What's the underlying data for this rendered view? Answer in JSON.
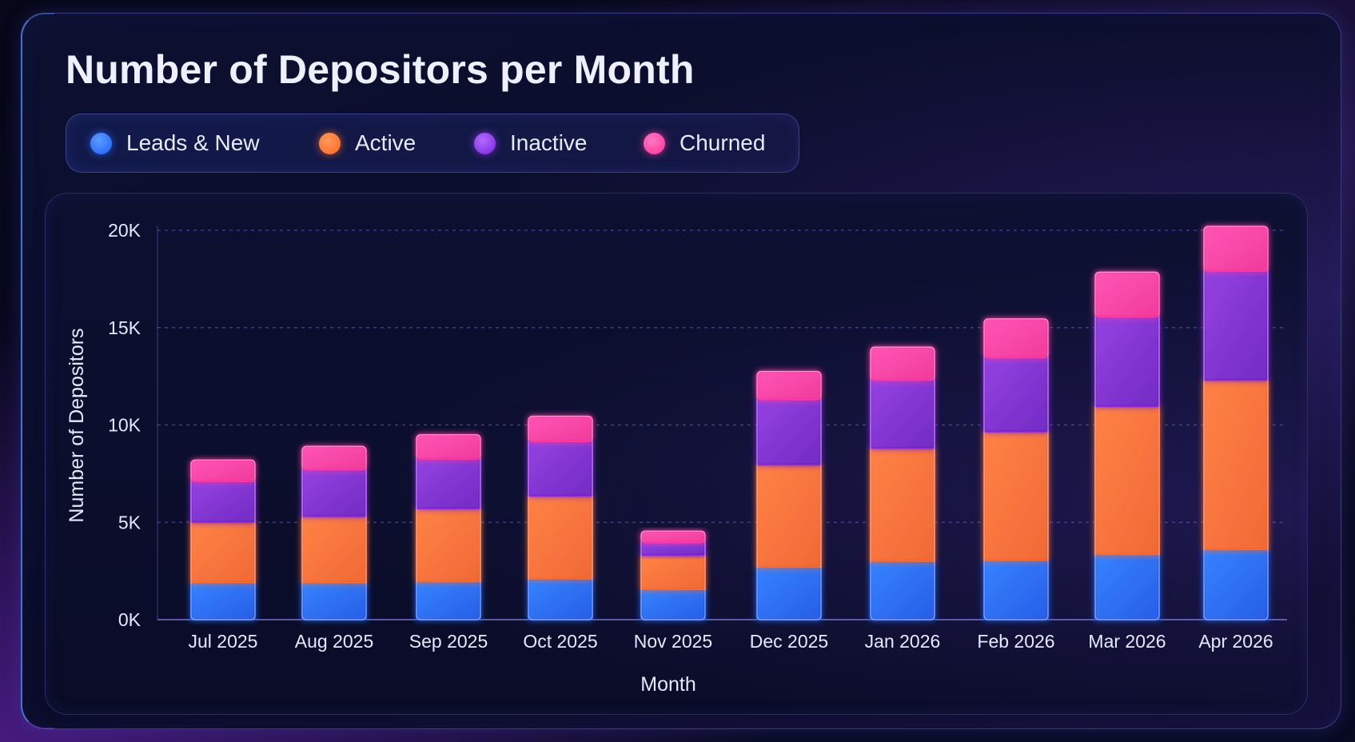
{
  "title": "Number of Depositors per Month",
  "legend": [
    {
      "name": "Leads & New",
      "color": "#1f6bff"
    },
    {
      "name": "Active",
      "color": "#ff6f2c"
    },
    {
      "name": "Inactive",
      "color": "#8a2be2"
    },
    {
      "name": "Churned",
      "color": "#ff3fa6"
    }
  ],
  "chart_data": {
    "type": "bar",
    "stacked": true,
    "title": "Number of Depositors per Month",
    "xlabel": "Month",
    "ylabel": "Number of Depositors",
    "ylim": [
      0,
      20000
    ],
    "yticks": [
      0,
      5000,
      10000,
      15000,
      20000
    ],
    "ytick_labels": [
      "0K",
      "5K",
      "10K",
      "15K",
      "20K"
    ],
    "grid": true,
    "legend_position": "top-left",
    "categories": [
      "Jul 2025",
      "Aug 2025",
      "Sep 2025",
      "Oct 2025",
      "Nov 2025",
      "Dec 2025",
      "Jan 2026",
      "Feb 2026",
      "Mar 2026",
      "Apr 2026"
    ],
    "series": [
      {
        "name": "Leads & New",
        "color": "#1f6bff",
        "values": [
          1900,
          1900,
          1950,
          2100,
          1550,
          2700,
          3000,
          3050,
          3350,
          3600
        ]
      },
      {
        "name": "Active",
        "color": "#ff6f2c",
        "values": [
          3100,
          3400,
          3750,
          4250,
          1750,
          5250,
          5800,
          6600,
          7600,
          8700
        ]
      },
      {
        "name": "Inactive",
        "color": "#8a2be2",
        "values": [
          2100,
          2400,
          2550,
          2800,
          650,
          3350,
          3500,
          3800,
          4600,
          5600
        ]
      },
      {
        "name": "Churned",
        "color": "#ff3fa6",
        "values": [
          1100,
          1200,
          1250,
          1300,
          600,
          1450,
          1700,
          2000,
          2300,
          2300
        ]
      }
    ]
  }
}
